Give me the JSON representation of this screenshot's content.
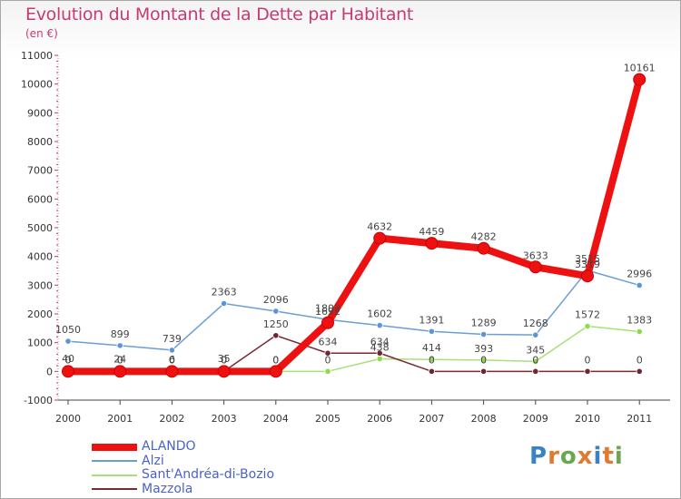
{
  "page": {
    "title": "Evolution du Montant de la Dette par Habitant",
    "subtitle": "(en €)",
    "brand": "Proxiti",
    "brand_colors": [
      "#3b82c4",
      "#e07a2e",
      "#6aa84f",
      "#e07a2e",
      "#3b82c4",
      "#e07a2e",
      "#6aa84f"
    ]
  },
  "chart_data": {
    "type": "line",
    "title": "Evolution du Montant de la Dette par Habitant",
    "subtitle": "(en €)",
    "xlabel": "",
    "ylabel": "",
    "x": [
      "2000",
      "2001",
      "2002",
      "2003",
      "2004",
      "2005",
      "2006",
      "2007",
      "2008",
      "2009",
      "2010",
      "2011"
    ],
    "ylim": [
      -1000,
      11000
    ],
    "yticks": [
      "-1000",
      "0",
      "1000",
      "2000",
      "3000",
      "4000",
      "5000",
      "6000",
      "7000",
      "8000",
      "9000",
      "10000",
      "11000"
    ],
    "grid": false,
    "legend_position": "bottom-left",
    "series": [
      {
        "name": "ALANDO",
        "color": "#ee1111",
        "line_width": 8,
        "values": [
          0,
          0,
          0,
          0,
          0,
          1692,
          4632,
          4459,
          4282,
          3633,
          3319,
          10161
        ],
        "labels": [
          "0",
          "0",
          "0",
          "0",
          "0",
          "1692",
          "4632",
          "4459",
          "4282",
          "3633",
          "3319",
          "10161"
        ]
      },
      {
        "name": "Alzi",
        "color": "#6a9ed6",
        "line_width": 1.5,
        "values": [
          1050,
          899,
          739,
          2363,
          2096,
          1802,
          1602,
          1391,
          1289,
          1268,
          3515,
          2996
        ],
        "labels": [
          "1050",
          "899",
          "739",
          "2363",
          "2096",
          "1802",
          "1602",
          "1391",
          "1289",
          "1268",
          "3515",
          "2996"
        ]
      },
      {
        "name": "Sant'Andréa-di-Bozio",
        "color": "#a6e07a",
        "line_width": 1.5,
        "values": [
          40,
          24,
          6,
          35,
          0,
          0,
          438,
          414,
          393,
          345,
          1572,
          1383
        ],
        "labels": [
          "40",
          "24",
          "6",
          "35",
          "0",
          "0",
          "438",
          "414",
          "393",
          "345",
          "1572",
          "1383"
        ]
      },
      {
        "name": "Mazzola",
        "color": "#7a2a33",
        "line_width": 1.5,
        "values": [
          0,
          0,
          0,
          0,
          1250,
          634,
          634,
          0,
          0,
          0,
          0,
          0
        ],
        "labels": [
          "0",
          "0",
          "0",
          "0",
          "1250",
          "634",
          "634",
          "0",
          "0",
          "0",
          "0",
          "0"
        ]
      }
    ]
  }
}
